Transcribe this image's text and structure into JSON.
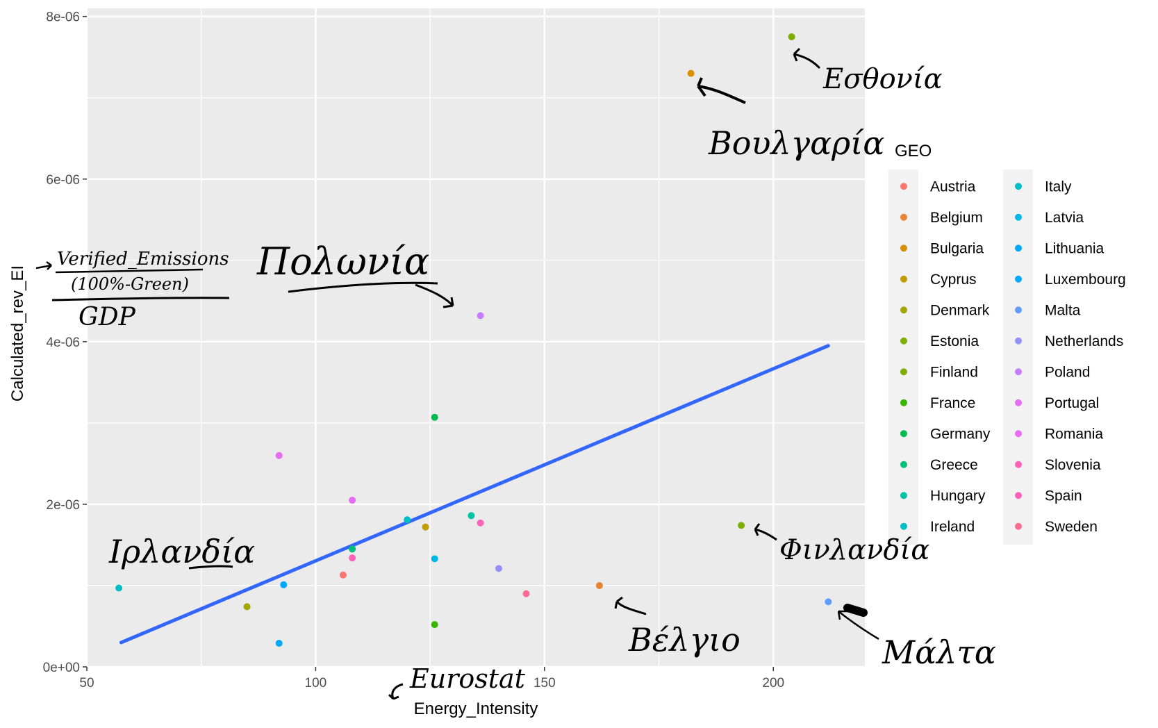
{
  "chart_data": {
    "type": "scatter",
    "xlabel": "Energy_Intensity",
    "ylabel": "Calculated_rev_EI",
    "xlim": [
      50,
      220
    ],
    "ylim": [
      0,
      8.1e-06
    ],
    "x_ticks": [
      {
        "value": 50,
        "label": "50"
      },
      {
        "value": 100,
        "label": "100"
      },
      {
        "value": 150,
        "label": "150"
      },
      {
        "value": 200,
        "label": "200"
      }
    ],
    "y_ticks": [
      {
        "value": 0,
        "label": "0e+00"
      },
      {
        "value": 2e-06,
        "label": "2e-06"
      },
      {
        "value": 4e-06,
        "label": "4e-06"
      },
      {
        "value": 6e-06,
        "label": "6e-06"
      },
      {
        "value": 8e-06,
        "label": "8e-06"
      }
    ],
    "grid": true,
    "legend": {
      "title": "GEO",
      "placement": "right",
      "columns": 2
    },
    "series": [
      {
        "name": "Austria",
        "color": "#F8766D",
        "x": 106,
        "y": 1.13e-06
      },
      {
        "name": "Belgium",
        "color": "#EA8331",
        "x": 162,
        "y": 1e-06
      },
      {
        "name": "Bulgaria",
        "color": "#D89000",
        "x": 182,
        "y": 7.3e-06
      },
      {
        "name": "Cyprus",
        "color": "#C09B00",
        "x": 124,
        "y": 1.72e-06
      },
      {
        "name": "Denmark",
        "color": "#A3A500",
        "x": 85,
        "y": 7.4e-07
      },
      {
        "name": "Estonia",
        "color": "#7CAE00",
        "x": 204,
        "y": 7.75e-06
      },
      {
        "name": "Finland",
        "color": "#7CAE00",
        "x": 193,
        "y": 1.74e-06
      },
      {
        "name": "France",
        "color": "#39B600",
        "x": 126,
        "y": 5.2e-07
      },
      {
        "name": "Germany",
        "color": "#00BB4E",
        "x": 126,
        "y": 3.07e-06
      },
      {
        "name": "Greece",
        "color": "#00BF7D",
        "x": 108,
        "y": 1.45e-06
      },
      {
        "name": "Hungary",
        "color": "#00C1A3",
        "x": 134,
        "y": 1.86e-06
      },
      {
        "name": "Ireland",
        "color": "#00BFC4",
        "x": 57,
        "y": 9.7e-07
      },
      {
        "name": "Italy",
        "color": "#00BFC4",
        "x": 120,
        "y": 1.81e-06
      },
      {
        "name": "Latvia",
        "color": "#00B8E7",
        "x": 126,
        "y": 1.33e-06
      },
      {
        "name": "Lithuania",
        "color": "#00A9FF",
        "x": 93,
        "y": 1.01e-06
      },
      {
        "name": "Luxembourg",
        "color": "#00A9FF",
        "x": 92,
        "y": 2.9e-07
      },
      {
        "name": "Malta",
        "color": "#619CFF",
        "x": 212,
        "y": 8e-07
      },
      {
        "name": "Netherlands",
        "color": "#9590FF",
        "x": 140,
        "y": 1.21e-06
      },
      {
        "name": "Poland",
        "color": "#C77CFF",
        "x": 136,
        "y": 4.32e-06
      },
      {
        "name": "Portugal",
        "color": "#E76BF3",
        "x": 108,
        "y": 2.05e-06
      },
      {
        "name": "Romania",
        "color": "#E76BF3",
        "x": 92,
        "y": 2.6e-06
      },
      {
        "name": "Slovenia",
        "color": "#FF62BC",
        "x": 136,
        "y": 1.77e-06
      },
      {
        "name": "Spain",
        "color": "#FF62BC",
        "x": 108,
        "y": 1.34e-06
      },
      {
        "name": "Sweden",
        "color": "#FF6C91",
        "x": 146,
        "y": 9e-07
      }
    ],
    "trend_line": {
      "color": "#3366FF",
      "x": [
        57.5,
        212
      ],
      "y": [
        3e-07,
        3.95e-06
      ]
    },
    "annotations": [
      {
        "id": "estonia",
        "text": "Εσθονία"
      },
      {
        "id": "bulgaria",
        "text": "Βουλγαρία"
      },
      {
        "id": "poland",
        "text": "Πολωνία"
      },
      {
        "id": "ireland",
        "text": "Ιρλανδία"
      },
      {
        "id": "finland",
        "text": "Φινλανδία"
      },
      {
        "id": "belgium",
        "text": "Βέλγιο"
      },
      {
        "id": "malta",
        "text": "Μάλτα"
      },
      {
        "id": "eurostat",
        "text": "Eurostat"
      },
      {
        "id": "formula_num",
        "text": "Verified_Emissions"
      },
      {
        "id": "formula_sub",
        "text": "(100%-Green)"
      },
      {
        "id": "formula_den",
        "text": "GDP"
      }
    ]
  }
}
